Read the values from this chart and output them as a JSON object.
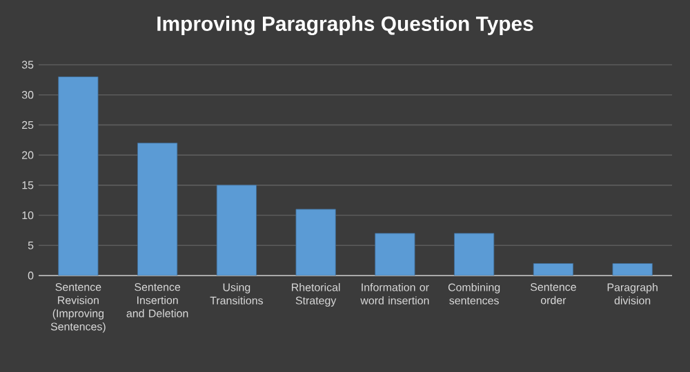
{
  "chart_data": {
    "type": "bar",
    "title": "Improving Paragraphs Question Types",
    "categories": [
      "Sentence Revision (Improving Sentences)",
      "Sentence Insertion and Deletion",
      "Using Transitions",
      "Rhetorical Strategy",
      "Information or word insertion",
      "Combining sentences",
      "Sentence order",
      "Paragraph division"
    ],
    "values": [
      33,
      22,
      15,
      11,
      7,
      7,
      2,
      2
    ],
    "color": "#5b9bd5",
    "ylim": [
      0,
      35
    ],
    "yticks": [
      0,
      5,
      10,
      15,
      20,
      25,
      30,
      35
    ],
    "grid": "y"
  }
}
